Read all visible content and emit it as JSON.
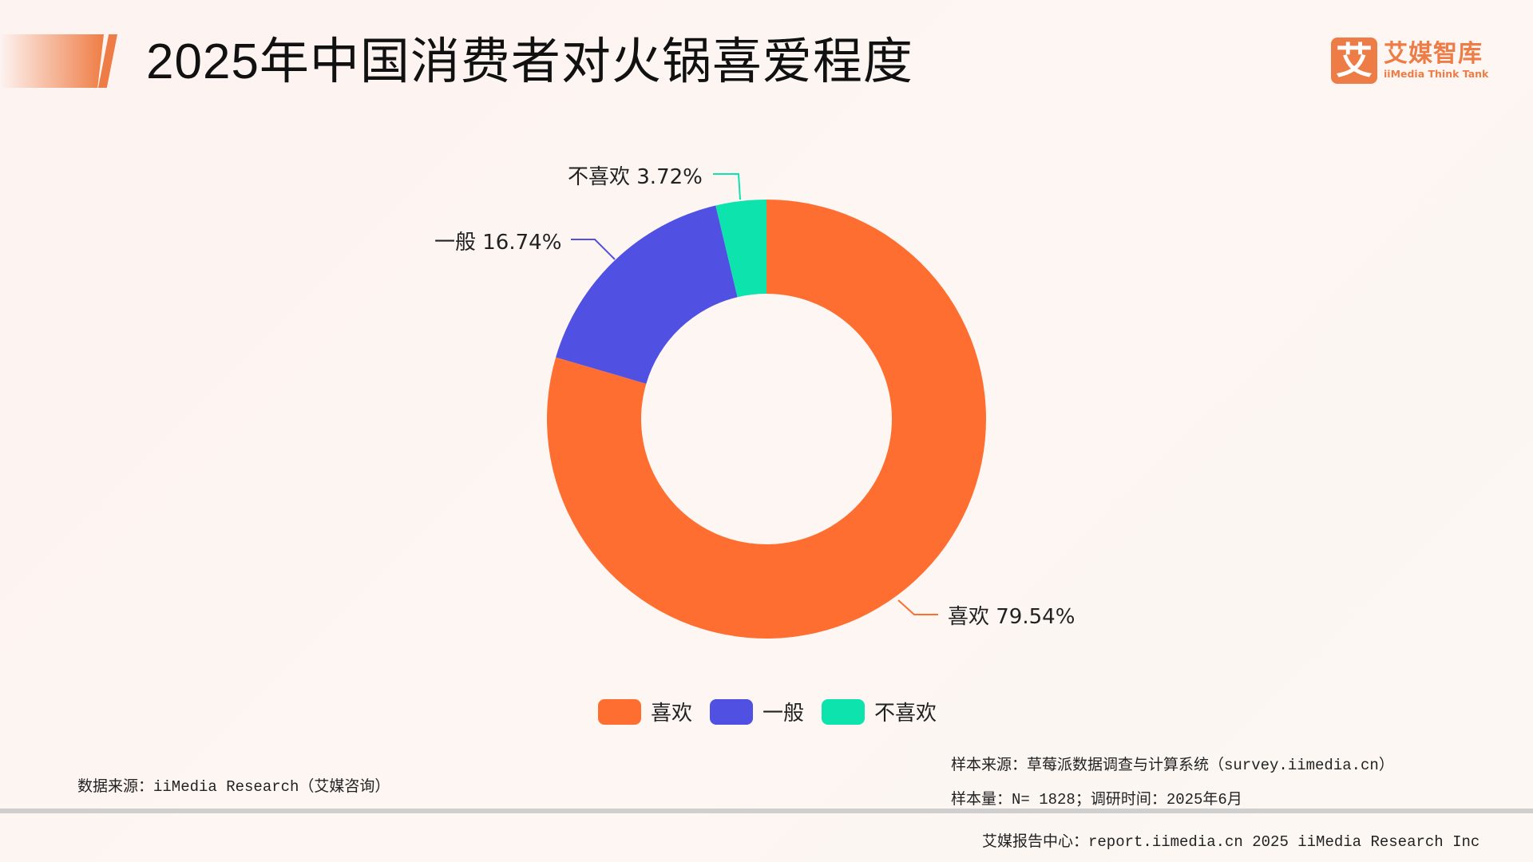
{
  "header": {
    "title": "2025年中国消费者对火锅喜爱程度",
    "logo": {
      "mark": "艾",
      "cn": "艾媒智库",
      "en": "iiMedia Think Tank",
      "color": "#ee7c46"
    }
  },
  "chart_data": {
    "type": "pie",
    "variant": "donut",
    "title": "2025年中国消费者对火锅喜爱程度",
    "categories": [
      "喜欢",
      "一般",
      "不喜欢"
    ],
    "values": [
      79.54,
      16.74,
      3.72
    ],
    "unit": "%",
    "colors": [
      "#fe6e30",
      "#5050e2",
      "#0de3ad"
    ],
    "data_labels": [
      "喜欢 79.54%",
      "一般 16.74%",
      "不喜欢 3.72%"
    ],
    "legend_position": "bottom",
    "start_angle": "12 o'clock, clockwise"
  },
  "labels": {
    "like": "喜欢 79.54%",
    "neutral": "一般 16.74%",
    "dislike": "不喜欢 3.72%"
  },
  "legend": [
    {
      "label": "喜欢",
      "color": "#fe6e30"
    },
    {
      "label": "一般",
      "color": "#5050e2"
    },
    {
      "label": "不喜欢",
      "color": "#0de3ad"
    }
  ],
  "footer": {
    "data_source": "数据来源：iiMedia Research（艾媒咨询）",
    "sample_source": "样本来源：草莓派数据调查与计算系统（survey.iimedia.cn）",
    "sample_size": "样本量：N= 1828；调研时间：2025年6月",
    "report_center": "艾媒报告中心：report.iimedia.cn   2025 iiMedia Research Inc"
  }
}
